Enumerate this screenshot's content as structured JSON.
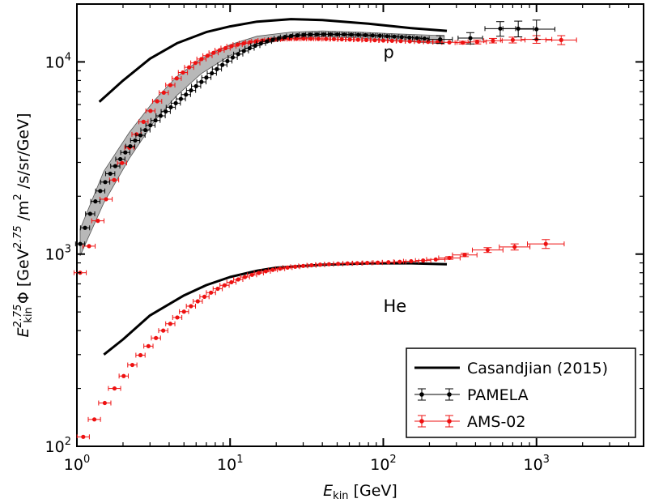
{
  "chart_data": {
    "type": "scatter",
    "x_scale": "log",
    "y_scale": "log",
    "xlim": [
      1,
      5000
    ],
    "ylim": [
      100,
      20000
    ],
    "x_ticks": [
      {
        "value": 1,
        "mantissa": "10",
        "exp": "0"
      },
      {
        "value": 10,
        "mantissa": "10",
        "exp": "1"
      },
      {
        "value": 100,
        "mantissa": "10",
        "exp": "2"
      },
      {
        "value": 1000,
        "mantissa": "10",
        "exp": "3"
      }
    ],
    "y_ticks": [
      {
        "value": 100,
        "mantissa": "10",
        "exp": "2"
      },
      {
        "value": 1000,
        "mantissa": "10",
        "exp": "3"
      },
      {
        "value": 10000,
        "mantissa": "10",
        "exp": "4"
      }
    ],
    "xlabel": {
      "symbol": "E",
      "sub": "kin",
      "unit": " [GeV]"
    },
    "ylabel": {
      "symbol": "E",
      "sub": "kin",
      "sup": "2.75",
      "phi": "Φ",
      "unit_pre": " [GeV",
      "unit_sup": "2.75",
      "unit_mid": " /m",
      "unit_sup2": "2",
      "unit_post": " /s/sr/GeV]"
    },
    "annotations": [
      {
        "text": "p",
        "x": 100,
        "y": 10500
      },
      {
        "text": "He",
        "x": 100,
        "y": 500
      }
    ],
    "legend_position": "bottom-right",
    "series": [
      {
        "name": "Casandjian (2015)",
        "kind": "line",
        "color": "#000000",
        "groups": [
          {
            "x": [
              1.4,
              2,
              3,
              4.5,
              7,
              10,
              15,
              25,
              40,
              80,
              150,
              260
            ],
            "y": [
              6200,
              8000,
              10400,
              12500,
              14300,
              15300,
              16200,
              16700,
              16500,
              15800,
              15000,
              14500
            ]
          },
          {
            "x": [
              1.5,
              2,
              3,
              5,
              7,
              10,
              15,
              20,
              40,
              80,
              150,
              260
            ],
            "y": [
              300,
              360,
              480,
              610,
              690,
              760,
              820,
              850,
              880,
              895,
              895,
              885
            ]
          }
        ]
      },
      {
        "name": "PAMELA",
        "kind": "points",
        "color": "#000000",
        "x": [
          1.05,
          1.13,
          1.22,
          1.32,
          1.42,
          1.53,
          1.65,
          1.78,
          1.92,
          2.07,
          2.23,
          2.4,
          2.6,
          2.8,
          3.02,
          3.26,
          3.52,
          3.8,
          4.1,
          4.42,
          4.77,
          5.15,
          5.56,
          6.0,
          6.5,
          7.0,
          7.6,
          8.2,
          8.9,
          9.6,
          10.4,
          11.3,
          12.3,
          13.4,
          14.6,
          15.9,
          17.4,
          19.0,
          20.8,
          22.8,
          25.0,
          27.5,
          30.3,
          33.4,
          36.9,
          40.8,
          45.2,
          50.1,
          55.6,
          61.8,
          68.7,
          76.5,
          85.2,
          95.0,
          106,
          118,
          132,
          148,
          166,
          186,
          235,
          370,
          580,
          760,
          1000
        ],
        "y": [
          1130,
          1370,
          1620,
          1880,
          2130,
          2370,
          2620,
          2870,
          3120,
          3380,
          3640,
          3900,
          4150,
          4420,
          4680,
          4960,
          5240,
          5520,
          5810,
          6100,
          6420,
          6760,
          7110,
          7480,
          7870,
          8290,
          8730,
          9180,
          9650,
          10100,
          10550,
          10980,
          11400,
          11780,
          12150,
          12480,
          12780,
          13050,
          13290,
          13480,
          13640,
          13750,
          13830,
          13880,
          13910,
          13920,
          13920,
          13910,
          13890,
          13860,
          13830,
          13780,
          13730,
          13680,
          13610,
          13540,
          13470,
          13390,
          13310,
          13230,
          13100,
          13300,
          14900,
          14900,
          14800
        ],
        "xerr": [
          0,
          0,
          0,
          0,
          0,
          0,
          0,
          0,
          0,
          0,
          0,
          0,
          0,
          0,
          0,
          0,
          0,
          0,
          0,
          0,
          0,
          0,
          0,
          0,
          0,
          0,
          0,
          0,
          0,
          0,
          0,
          0,
          0,
          0,
          0,
          0,
          0,
          0,
          0,
          0,
          0,
          0,
          0,
          0,
          0,
          0,
          0,
          0,
          0,
          0,
          0,
          0,
          0,
          0,
          0,
          0,
          0,
          0,
          0,
          0,
          0.08,
          0.08,
          0.1,
          0.1,
          0.12
        ],
        "yerr": [
          0,
          0,
          0,
          0,
          0,
          0,
          0,
          0,
          0,
          0,
          0,
          0,
          0,
          0,
          0,
          0,
          0,
          0,
          0,
          0,
          0,
          0,
          0,
          0,
          0,
          0,
          0,
          0,
          0,
          0,
          0,
          0,
          0,
          0,
          0,
          0,
          0,
          0,
          0,
          0,
          0,
          0,
          0,
          0,
          0,
          0,
          0,
          0,
          0,
          0,
          0,
          0,
          0,
          0,
          0,
          0,
          0,
          0,
          0,
          0,
          600,
          900,
          1300,
          1400,
          1700
        ],
        "band_x": [
          1.05,
          1.5,
          2.2,
          3.2,
          4.5,
          6.5,
          10,
          15,
          25,
          40,
          70,
          120,
          250
        ],
        "band_lo": [
          980,
          1850,
          3150,
          4900,
          6700,
          8700,
          10800,
          12300,
          13200,
          13500,
          13300,
          12900,
          12400
        ],
        "band_hi": [
          1350,
          2700,
          4300,
          6300,
          8400,
          10400,
          12300,
          13600,
          14300,
          14500,
          14300,
          14000,
          13700
        ]
      },
      {
        "name": "AMS-02",
        "kind": "points",
        "color": "#ee1111",
        "groups": [
          {
            "x": [
              1.05,
              1.2,
              1.37,
              1.55,
              1.75,
              1.97,
              2.2,
              2.45,
              2.72,
              3.02,
              3.34,
              3.69,
              4.07,
              4.48,
              4.92,
              5.4,
              5.93,
              6.5,
              7.12,
              7.8,
              8.54,
              9.34,
              10.2,
              11.2,
              12.3,
              13.5,
              14.8,
              16.3,
              18.0,
              19.9,
              22.0,
              24.4,
              27.1,
              30.2,
              33.7,
              37.7,
              42.3,
              47.6,
              53.6,
              60.5,
              68.4,
              77.5,
              88.0,
              100,
              114,
              130,
              149,
              171,
              196,
              226,
              270,
              330,
              410,
              520,
              700,
              1000,
              1450
            ],
            "y": [
              800,
              1100,
              1490,
              1930,
              2430,
              2980,
              3580,
              4200,
              4880,
              5560,
              6240,
              6920,
              7580,
              8210,
              8810,
              9370,
              9880,
              10350,
              10770,
              11150,
              11500,
              11800,
              12070,
              12300,
              12500,
              12670,
              12810,
              12930,
              13020,
              13090,
              13140,
              13170,
              13190,
              13200,
              13190,
              13180,
              13160,
              13140,
              13110,
              13080,
              13040,
              13000,
              12960,
              12920,
              12880,
              12840,
              12800,
              12760,
              12720,
              12680,
              12640,
              12600,
              12700,
              12900,
              13000,
              13100,
              13000
            ],
            "xerr": [
              0.04,
              0.04,
              0.04,
              0.04,
              0.03,
              0.03,
              0.03,
              0.03,
              0.03,
              0.03,
              0.03,
              0.03,
              0.03,
              0.03,
              0.03,
              0.03,
              0.03,
              0.03,
              0.03,
              0.03,
              0.03,
              0.03,
              0.03,
              0.03,
              0.03,
              0.03,
              0.03,
              0.03,
              0.03,
              0.03,
              0.03,
              0.03,
              0.03,
              0.03,
              0.03,
              0.03,
              0.03,
              0.03,
              0.03,
              0.03,
              0.03,
              0.03,
              0.03,
              0.03,
              0.03,
              0.03,
              0.03,
              0.03,
              0.03,
              0.03,
              0.05,
              0.05,
              0.06,
              0.06,
              0.08,
              0.1,
              0.1
            ],
            "yerr": [
              0,
              0,
              0,
              0,
              0,
              0,
              0,
              0,
              0,
              0,
              0,
              0,
              0,
              0,
              0,
              0,
              0,
              0,
              0,
              0,
              0,
              0,
              0,
              0,
              0,
              0,
              0,
              0,
              0,
              0,
              0,
              0,
              0,
              0,
              0,
              0,
              0,
              0,
              0,
              0,
              0,
              0,
              0,
              0,
              0,
              0,
              0,
              0,
              0,
              0,
              0,
              200,
              300,
              350,
              450,
              600,
              700
            ]
          },
          {
            "x": [
              1.1,
              1.3,
              1.52,
              1.76,
              2.02,
              2.3,
              2.6,
              2.93,
              3.28,
              3.66,
              4.07,
              4.52,
              5.0,
              5.55,
              6.15,
              6.8,
              7.5,
              8.3,
              9.2,
              10.2,
              11.3,
              12.5,
              13.9,
              15.4,
              17.1,
              19.0,
              21.2,
              23.7,
              26.6,
              30.0,
              34.0,
              38.7,
              44.2,
              50.7,
              58.4,
              67.6,
              78.6,
              92,
              108,
              128,
              152,
              182,
              220,
              270,
              340,
              480,
              720,
              1150
            ],
            "y": [
              112,
              138,
              168,
              200,
              232,
              265,
              298,
              332,
              366,
              400,
              434,
              468,
              502,
              536,
              568,
              600,
              630,
              660,
              688,
              714,
              738,
              760,
              780,
              798,
              814,
              828,
              840,
              851,
              860,
              868,
              875,
              881,
              886,
              890,
              894,
              897,
              900,
              903,
              907,
              912,
              918,
              926,
              938,
              955,
              990,
              1050,
              1090,
              1130
            ],
            "xerr": [
              0.04,
              0.04,
              0.04,
              0.04,
              0.03,
              0.03,
              0.03,
              0.03,
              0.03,
              0.03,
              0.03,
              0.03,
              0.03,
              0.03,
              0.03,
              0.03,
              0.03,
              0.03,
              0.03,
              0.03,
              0.03,
              0.03,
              0.03,
              0.03,
              0.03,
              0.03,
              0.03,
              0.03,
              0.03,
              0.03,
              0.03,
              0.03,
              0.03,
              0.03,
              0.03,
              0.03,
              0.03,
              0.03,
              0.04,
              0.04,
              0.05,
              0.05,
              0.06,
              0.07,
              0.08,
              0.1,
              0.1,
              0.12
            ],
            "yerr": [
              0,
              0,
              0,
              0,
              0,
              0,
              0,
              0,
              0,
              0,
              0,
              0,
              0,
              0,
              0,
              0,
              0,
              0,
              0,
              0,
              0,
              0,
              0,
              0,
              0,
              0,
              0,
              0,
              0,
              0,
              0,
              0,
              0,
              0,
              0,
              0,
              0,
              0,
              0,
              0,
              0,
              0,
              0,
              15,
              20,
              30,
              40,
              60
            ]
          }
        ]
      }
    ]
  }
}
